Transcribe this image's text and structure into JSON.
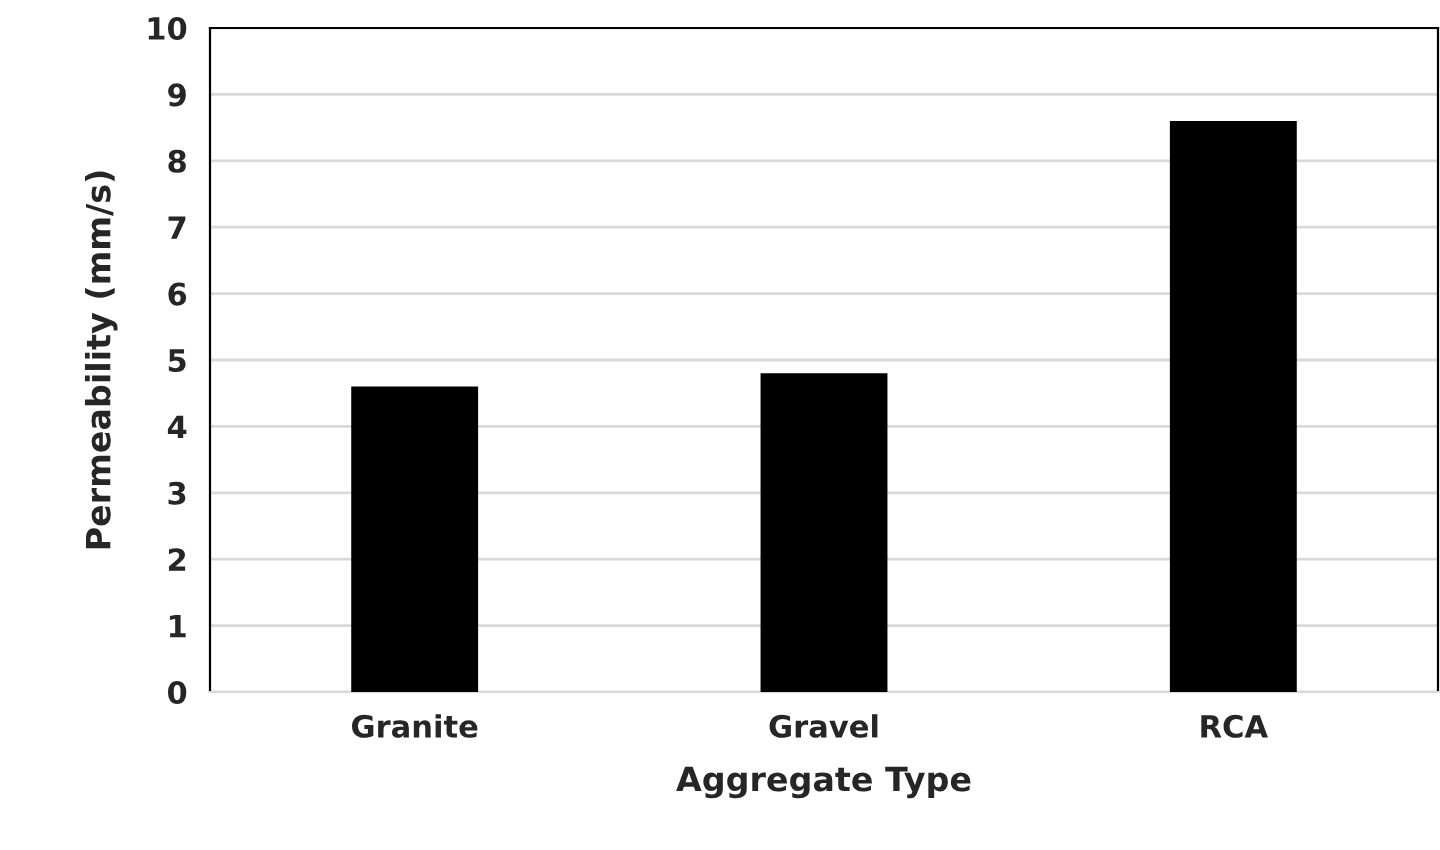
{
  "chart_data": {
    "type": "bar",
    "xlabel": "Aggregate Type",
    "ylabel": "Permeability (mm/s)",
    "categories": [
      "Granite",
      "Gravel",
      "RCA"
    ],
    "values": [
      4.6,
      4.8,
      8.6
    ],
    "color": "#000000",
    "ylim": [
      0,
      10
    ],
    "yticks": [
      0,
      1,
      2,
      3,
      4,
      5,
      6,
      7,
      8,
      9,
      10
    ],
    "grid": "y"
  }
}
